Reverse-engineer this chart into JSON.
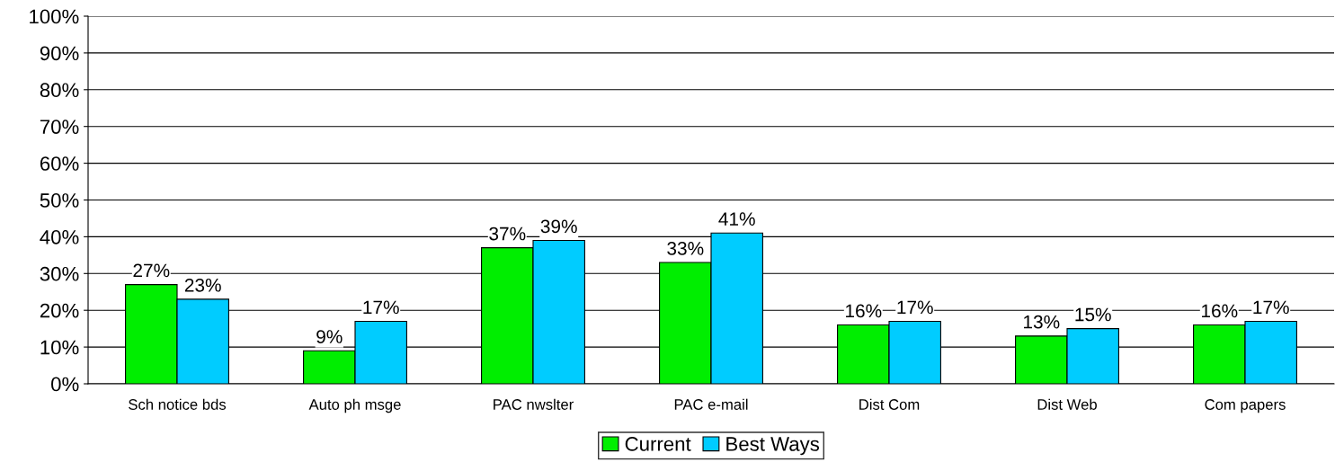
{
  "chart_data": {
    "type": "bar",
    "categories": [
      "Sch notice bds",
      "Auto ph msge",
      "PAC nwslter",
      "PAC e-mail",
      "Dist Com",
      "Dist Web",
      "Com papers"
    ],
    "series": [
      {
        "name": "Current",
        "color": "#00ee00",
        "values": [
          27,
          9,
          37,
          33,
          16,
          13,
          16
        ]
      },
      {
        "name": "Best Ways",
        "color": "#00ccff",
        "values": [
          23,
          17,
          39,
          41,
          17,
          15,
          17
        ]
      }
    ],
    "ylim": [
      0,
      100
    ],
    "yticks": [
      {
        "value": 0,
        "label": "0%"
      },
      {
        "value": 10,
        "label": "10%"
      },
      {
        "value": 20,
        "label": "20%"
      },
      {
        "value": 30,
        "label": "30%"
      },
      {
        "value": 40,
        "label": "40%"
      },
      {
        "value": 50,
        "label": "50%"
      },
      {
        "value": 60,
        "label": "60%"
      },
      {
        "value": 70,
        "label": "70%"
      },
      {
        "value": 80,
        "label": "80%"
      },
      {
        "value": 90,
        "label": "90%"
      },
      {
        "value": 100,
        "label": "100%"
      }
    ],
    "value_labels": [
      [
        "27%",
        "9%",
        "37%",
        "33%",
        "16%",
        "13%",
        "16%"
      ],
      [
        "23%",
        "17%",
        "39%",
        "41%",
        "17%",
        "15%",
        "17%"
      ]
    ],
    "grid": "y",
    "legend": "bottom"
  }
}
